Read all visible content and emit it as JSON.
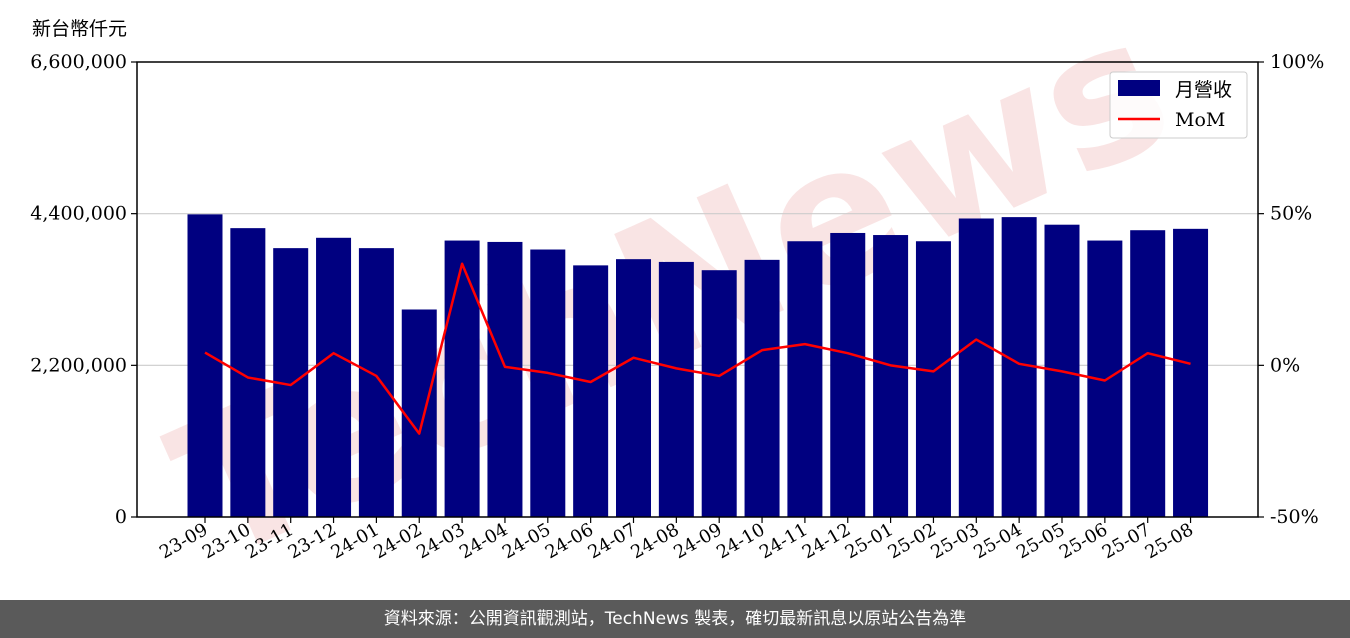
{
  "unit_label": "新台幣仟元",
  "footer": "資料來源：公開資訊觀測站，TechNews 製表，確切最新訊息以原站公告為準",
  "watermark": "TechNews",
  "colors": {
    "bar": "#000080",
    "line": "#ff0000",
    "grid": "#cccccc",
    "watermark": "#f2c4c4",
    "footer_bg": "#5a5a5a"
  },
  "chart_data": {
    "type": "bar",
    "categories": [
      "23-09",
      "23-10",
      "23-11",
      "23-12",
      "24-01",
      "24-02",
      "24-03",
      "24-04",
      "24-05",
      "24-06",
      "24-07",
      "24-08",
      "24-09",
      "24-10",
      "24-11",
      "24-12",
      "25-01",
      "25-02",
      "25-03",
      "25-04",
      "25-05",
      "25-06",
      "25-07",
      "25-08"
    ],
    "series": [
      {
        "name": "月營收",
        "axis": "left",
        "type": "bar",
        "values": [
          4390000,
          4190000,
          3900000,
          4050000,
          3900000,
          3010000,
          4010000,
          3990000,
          3880000,
          3650000,
          3740000,
          3700000,
          3580000,
          3730000,
          4000000,
          4120000,
          4090000,
          4000000,
          4330000,
          4350000,
          4240000,
          4010000,
          4160000,
          4180000
        ]
      },
      {
        "name": "MoM",
        "axis": "right",
        "type": "line",
        "values": [
          4.2,
          -4.0,
          -6.5,
          4.0,
          -3.5,
          -22.5,
          33.5,
          -0.5,
          -2.5,
          -5.5,
          2.5,
          -1.0,
          -3.5,
          5.0,
          7.0,
          4.0,
          0.0,
          -2.0,
          8.5,
          0.5,
          -2.0,
          -5.0,
          4.0,
          0.5
        ]
      }
    ],
    "y_left": {
      "ylim": [
        0,
        6600000
      ],
      "ticks": [
        0,
        2200000,
        4400000,
        6600000
      ],
      "tick_labels": [
        "0",
        "2,200,000",
        "4,400,000",
        "6,600,000"
      ]
    },
    "y_right": {
      "ylim": [
        -50,
        100
      ],
      "ticks": [
        -50,
        0,
        50,
        100
      ],
      "tick_labels": [
        "-50%",
        "0%",
        "50%",
        "100%"
      ]
    },
    "grid": "horizontal",
    "legend_position": "top-right"
  }
}
